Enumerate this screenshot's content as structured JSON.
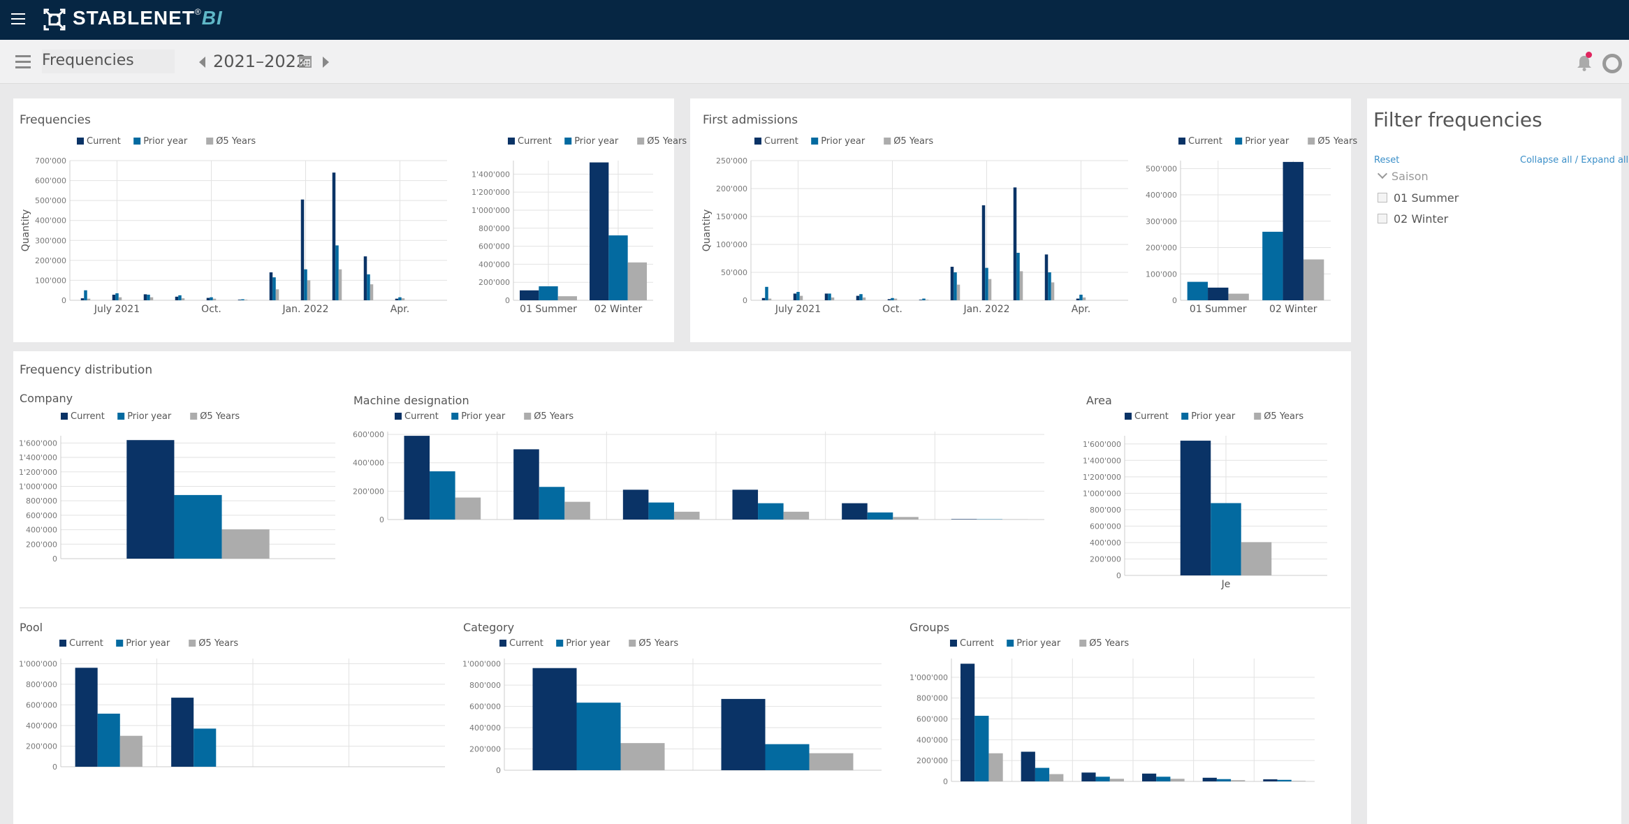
{
  "app": {
    "brand": "STABLENET",
    "brand_reg": "®",
    "brand_suffix": "BI"
  },
  "header": {
    "page_title": "Frequencies",
    "period": "2021–2022"
  },
  "filter": {
    "title": "Filter frequencies",
    "reset": "Reset",
    "collapse_expand": "Collapse all / Expand all",
    "group_label": "Saison",
    "options": [
      "01 Summer",
      "02 Winter"
    ]
  },
  "sections": {
    "frequencies": "Frequencies",
    "first_admissions": "First admissions",
    "distribution": "Frequency distribution",
    "company": "Company",
    "machine": "Machine designation",
    "area": "Area",
    "pool": "Pool",
    "category": "Category",
    "groups": "Groups"
  },
  "colors": {
    "current": "#0a3366",
    "prior": "#036aa0",
    "avg": "#acacac",
    "topbar": "#062643"
  },
  "chart_data": [
    {
      "id": "freq-monthly",
      "type": "bar",
      "ylabel": "Quantity",
      "ylim": [
        0,
        700000
      ],
      "yticks": [
        0,
        100000,
        200000,
        300000,
        400000,
        500000,
        600000,
        700000
      ],
      "ytick_labels": [
        "0",
        "100'000",
        "200'000",
        "300'000",
        "400'000",
        "500'000",
        "600'000",
        "700'000"
      ],
      "x_labels": [
        "July 2021",
        "Oct.",
        "Jan. 2022",
        "Apr."
      ],
      "x_label_index": [
        1.5,
        4.5,
        7.5,
        10.5
      ],
      "legend": [
        "Current",
        "Prior year",
        "Ø5 Years"
      ],
      "series": [
        {
          "name": "Current",
          "values": [
            10000,
            28000,
            30000,
            18000,
            12000,
            3000,
            140000,
            505000,
            640000,
            220000,
            8000,
            0
          ]
        },
        {
          "name": "Prior year",
          "values": [
            50000,
            35000,
            28000,
            25000,
            15000,
            5000,
            115000,
            155000,
            275000,
            130000,
            15000,
            0
          ]
        },
        {
          "name": "Ø5 Years",
          "values": [
            8000,
            15000,
            15000,
            10000,
            8000,
            3000,
            55000,
            100000,
            155000,
            80000,
            10000,
            0
          ]
        }
      ]
    },
    {
      "id": "freq-season",
      "type": "bar",
      "ylim": [
        0,
        1550000
      ],
      "yticks": [
        0,
        200000,
        400000,
        600000,
        800000,
        1000000,
        1200000,
        1400000
      ],
      "ytick_labels": [
        "0",
        "200'000",
        "400'000",
        "600'000",
        "800'000",
        "1'000'000",
        "1'200'000",
        "1'400'000"
      ],
      "categories": [
        "01 Summer",
        "02 Winter"
      ],
      "legend": [
        "Current",
        "Prior year",
        "Ø5 Years"
      ],
      "series": [
        {
          "name": "Current",
          "values": [
            110000,
            1530000
          ]
        },
        {
          "name": "Prior year",
          "values": [
            155000,
            720000
          ]
        },
        {
          "name": "Ø5 Years",
          "values": [
            45000,
            420000
          ]
        }
      ]
    },
    {
      "id": "first-monthly",
      "type": "bar",
      "ylabel": "Quantity",
      "ylim": [
        0,
        250000
      ],
      "yticks": [
        0,
        50000,
        100000,
        150000,
        200000,
        250000
      ],
      "ytick_labels": [
        "0",
        "50'000",
        "100'000",
        "150'000",
        "200'000",
        "250'000"
      ],
      "x_labels": [
        "July 2021",
        "Oct.",
        "Jan. 2022",
        "Apr."
      ],
      "x_label_index": [
        1.5,
        4.5,
        7.5,
        10.5
      ],
      "legend": [
        "Current",
        "Prior year",
        "Ø5 Years"
      ],
      "series": [
        {
          "name": "Current",
          "values": [
            4000,
            12000,
            12000,
            8000,
            2000,
            1000,
            60000,
            170000,
            202000,
            82000,
            3000,
            0
          ]
        },
        {
          "name": "Prior year",
          "values": [
            24000,
            15000,
            12000,
            11000,
            4000,
            3000,
            50000,
            58000,
            85000,
            50000,
            10000,
            0
          ]
        },
        {
          "name": "Ø5 Years",
          "values": [
            3000,
            8000,
            5000,
            5000,
            3000,
            1000,
            28000,
            38000,
            52000,
            32000,
            5000,
            0
          ]
        }
      ]
    },
    {
      "id": "first-season",
      "type": "bar",
      "ylim": [
        0,
        530000
      ],
      "yticks": [
        0,
        100000,
        200000,
        300000,
        400000,
        500000
      ],
      "ytick_labels": [
        "0",
        "100'000",
        "200'000",
        "300'000",
        "400'000",
        "500'000"
      ],
      "categories": [
        "01 Summer",
        "02 Winter"
      ],
      "legend": [
        "Current",
        "Prior year",
        "Ø5 Years"
      ],
      "series": [
        {
          "name": "Prior year",
          "values": [
            70000,
            260000
          ]
        },
        {
          "name": "Current",
          "values": [
            48000,
            525000
          ]
        },
        {
          "name": "Ø5 Years",
          "values": [
            25000,
            155000
          ]
        }
      ]
    },
    {
      "id": "company",
      "type": "bar",
      "ylim": [
        0,
        1700000
      ],
      "yticks": [
        0,
        200000,
        400000,
        600000,
        800000,
        1000000,
        1200000,
        1400000,
        1600000
      ],
      "ytick_labels": [
        "0",
        "200'000",
        "400'000",
        "600'000",
        "800'000",
        "1'000'000",
        "1'200'000",
        "1'400'000",
        "1'600'000"
      ],
      "categories": [
        ""
      ],
      "legend": [
        "Current",
        "Prior year",
        "Ø5 Years"
      ],
      "series": [
        {
          "name": "Current",
          "values": [
            1640000
          ]
        },
        {
          "name": "Prior year",
          "values": [
            880000
          ]
        },
        {
          "name": "Ø5 Years",
          "values": [
            405000
          ]
        }
      ]
    },
    {
      "id": "machine",
      "type": "bar",
      "ylim": [
        0,
        620000
      ],
      "yticks": [
        0,
        200000,
        400000,
        600000
      ],
      "ytick_labels": [
        "0",
        "200'000",
        "400'000",
        "600'000"
      ],
      "categories": [
        "",
        "",
        "",
        "",
        "",
        ""
      ],
      "legend": [
        "Current",
        "Prior year",
        "Ø5 Years"
      ],
      "series": [
        {
          "name": "Current",
          "values": [
            590000,
            495000,
            210000,
            210000,
            115000,
            3000
          ]
        },
        {
          "name": "Prior year",
          "values": [
            340000,
            230000,
            120000,
            115000,
            50000,
            2000
          ]
        },
        {
          "name": "Ø5 Years",
          "values": [
            155000,
            125000,
            55000,
            55000,
            18000,
            1000
          ]
        }
      ]
    },
    {
      "id": "area",
      "type": "bar",
      "ylim": [
        0,
        1700000
      ],
      "yticks": [
        0,
        200000,
        400000,
        600000,
        800000,
        1000000,
        1200000,
        1400000,
        1600000
      ],
      "ytick_labels": [
        "0",
        "200'000",
        "400'000",
        "600'000",
        "800'000",
        "1'000'000",
        "1'200'000",
        "1'400'000",
        "1'600'000"
      ],
      "categories": [
        "Je"
      ],
      "legend": [
        "Current",
        "Prior year",
        "Ø5 Years"
      ],
      "series": [
        {
          "name": "Current",
          "values": [
            1640000
          ]
        },
        {
          "name": "Prior year",
          "values": [
            880000
          ]
        },
        {
          "name": "Ø5 Years",
          "values": [
            405000
          ]
        }
      ]
    },
    {
      "id": "pool",
      "type": "bar",
      "ylim": [
        0,
        1050000
      ],
      "yticks": [
        0,
        200000,
        400000,
        600000,
        800000,
        1000000
      ],
      "ytick_labels": [
        "0",
        "200'000",
        "400'000",
        "600'000",
        "800'000",
        "1'000'000"
      ],
      "categories": [
        "",
        "",
        "",
        ""
      ],
      "legend": [
        "Current",
        "Prior year",
        "Ø5 Years"
      ],
      "series": [
        {
          "name": "Current",
          "values": [
            960000,
            670000,
            0,
            0
          ]
        },
        {
          "name": "Prior year",
          "values": [
            515000,
            370000,
            0,
            0
          ]
        },
        {
          "name": "Ø5 Years",
          "values": [
            300000,
            0,
            0,
            0
          ]
        }
      ]
    },
    {
      "id": "category",
      "type": "bar",
      "ylim": [
        0,
        1050000
      ],
      "yticks": [
        0,
        200000,
        400000,
        600000,
        800000,
        1000000
      ],
      "ytick_labels": [
        "0",
        "200'000",
        "400'000",
        "600'000",
        "800'000",
        "1'000'000"
      ],
      "categories": [
        "",
        ""
      ],
      "legend": [
        "Current",
        "Prior year",
        "Ø5 Years"
      ],
      "series": [
        {
          "name": "Current",
          "values": [
            960000,
            670000
          ]
        },
        {
          "name": "Prior year",
          "values": [
            635000,
            245000
          ]
        },
        {
          "name": "Ø5 Years",
          "values": [
            255000,
            160000
          ]
        }
      ]
    },
    {
      "id": "groups",
      "type": "bar",
      "ylim": [
        0,
        1180000
      ],
      "yticks": [
        0,
        200000,
        400000,
        600000,
        800000,
        1000000
      ],
      "ytick_labels": [
        "0",
        "200'000",
        "400'000",
        "600'000",
        "800'000",
        "1'000'000"
      ],
      "categories": [
        "",
        "",
        "",
        "",
        "",
        ""
      ],
      "legend": [
        "Current",
        "Prior year",
        "Ø5 Years"
      ],
      "series": [
        {
          "name": "Current",
          "values": [
            1130000,
            285000,
            85000,
            75000,
            35000,
            20000
          ]
        },
        {
          "name": "Prior year",
          "values": [
            630000,
            130000,
            45000,
            45000,
            22000,
            15000
          ]
        },
        {
          "name": "Ø5 Years",
          "values": [
            270000,
            70000,
            25000,
            25000,
            12000,
            5000
          ]
        }
      ]
    }
  ]
}
